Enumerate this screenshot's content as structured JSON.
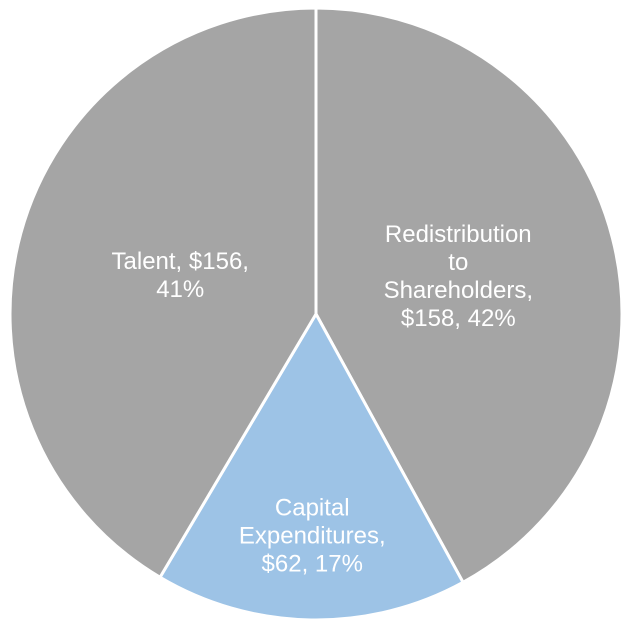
{
  "chart_data": {
    "type": "pie",
    "categories": [
      "Redistribution to Shareholders",
      "Capital Expenditures",
      "Talent"
    ],
    "values": [
      158,
      62,
      156
    ],
    "value_labels": [
      [
        "Redistribution",
        "to",
        "Shareholders,",
        "$158, 42%"
      ],
      [
        "Capital",
        "Expenditures,",
        "$62, 17%"
      ],
      [
        "Talent, $156,",
        "41%"
      ]
    ],
    "colors": [
      "#a5a5a5",
      "#9dc3e6",
      "#a5a5a5"
    ]
  }
}
